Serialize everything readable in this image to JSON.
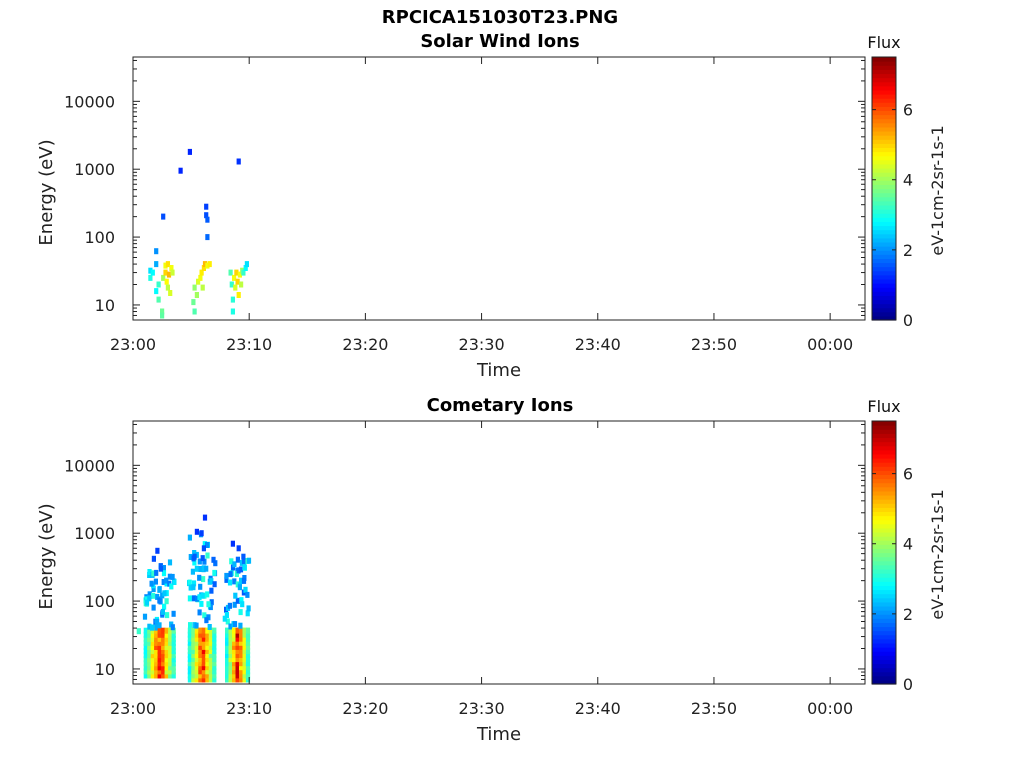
{
  "figure": {
    "title": "RPCICA151030T23.PNG"
  },
  "chart_data": [
    {
      "type": "heatmap",
      "title": "Solar Wind Ions",
      "xlabel": "Time",
      "ylabel": "Energy (eV)",
      "y_scale": "log",
      "y_range_ev": [
        6,
        45000
      ],
      "x_range_min": [
        0,
        63
      ],
      "x_ticks": [
        "23:00",
        "23:10",
        "23:20",
        "23:30",
        "23:40",
        "23:50",
        "00:00"
      ],
      "y_ticks": [
        "10",
        "100",
        "1000",
        "10000"
      ],
      "colorbar": {
        "label": "Flux",
        "unit": "eV-1cm-2sr-1s-1",
        "range": [
          0,
          7.5
        ],
        "ticks": [
          "0",
          "2",
          "4",
          "6"
        ],
        "colormap": "jet"
      },
      "cells": [
        [
          1.5,
          25,
          3.0
        ],
        [
          1.5,
          32,
          2.6
        ],
        [
          1.7,
          30,
          2.8
        ],
        [
          2.0,
          40,
          2.2
        ],
        [
          2.0,
          62,
          2.0
        ],
        [
          2.0,
          16,
          2.8
        ],
        [
          2.2,
          12,
          3.4
        ],
        [
          2.2,
          20,
          3.2
        ],
        [
          2.5,
          8,
          3.6
        ],
        [
          2.5,
          7,
          3.5
        ],
        [
          2.6,
          25,
          4.0
        ],
        [
          2.8,
          38,
          4.6
        ],
        [
          2.8,
          30,
          5.0
        ],
        [
          2.9,
          22,
          4.7
        ],
        [
          3.0,
          18,
          4.2
        ],
        [
          3.0,
          40,
          4.9
        ],
        [
          3.1,
          28,
          5.2
        ],
        [
          3.2,
          15,
          4.4
        ],
        [
          3.3,
          35,
          4.6
        ],
        [
          3.4,
          30,
          4.3
        ],
        [
          2.6,
          200,
          1.5
        ],
        [
          4.1,
          950,
          1.2
        ],
        [
          4.9,
          1800,
          1.2
        ],
        [
          5.2,
          11,
          3.6
        ],
        [
          5.3,
          8,
          3.4
        ],
        [
          5.3,
          18,
          3.9
        ],
        [
          5.5,
          14,
          4.0
        ],
        [
          5.6,
          22,
          4.4
        ],
        [
          5.8,
          25,
          4.6
        ],
        [
          5.9,
          30,
          4.8
        ],
        [
          6.0,
          18,
          4.2
        ],
        [
          6.1,
          35,
          4.9
        ],
        [
          6.2,
          40,
          5.2
        ],
        [
          6.4,
          38,
          4.6
        ],
        [
          6.6,
          40,
          4.8
        ],
        [
          6.3,
          210,
          1.5
        ],
        [
          6.4,
          180,
          1.6
        ],
        [
          6.3,
          280,
          1.4
        ],
        [
          6.4,
          100,
          1.7
        ],
        [
          8.4,
          30,
          3.4
        ],
        [
          8.5,
          20,
          3.2
        ],
        [
          8.6,
          12,
          3.1
        ],
        [
          8.6,
          8,
          3.0
        ],
        [
          8.7,
          25,
          4.6
        ],
        [
          8.8,
          18,
          4.4
        ],
        [
          8.9,
          30,
          5.0
        ],
        [
          9.0,
          22,
          5.0
        ],
        [
          9.1,
          14,
          4.8
        ],
        [
          9.2,
          28,
          4.6
        ],
        [
          9.3,
          20,
          4.2
        ],
        [
          9.4,
          32,
          4.0
        ],
        [
          9.5,
          30,
          3.2
        ],
        [
          9.7,
          35,
          2.8
        ],
        [
          9.8,
          40,
          2.6
        ],
        [
          9.1,
          1300,
          1.3
        ]
      ]
    },
    {
      "type": "heatmap",
      "title": "Cometary Ions",
      "xlabel": "Time",
      "ylabel": "Energy (eV)",
      "y_scale": "log",
      "y_range_ev": [
        6,
        45000
      ],
      "x_range_min": [
        0,
        63
      ],
      "x_ticks": [
        "23:00",
        "23:10",
        "23:20",
        "23:30",
        "23:40",
        "23:50",
        "00:00"
      ],
      "y_ticks": [
        "10",
        "100",
        "1000",
        "10000"
      ],
      "colorbar": {
        "label": "Flux",
        "unit": "eV-1cm-2sr-1s-1",
        "range": [
          0,
          7.5
        ],
        "ticks": [
          "0",
          "2",
          "4",
          "6"
        ],
        "colormap": "jet"
      },
      "bursts": [
        {
          "t_start": 1.1,
          "t_end": 3.6,
          "core_ev": [
            8,
            40
          ],
          "peak": 7.0,
          "top_ev": 560
        },
        {
          "t_start": 4.9,
          "t_end": 7.1,
          "core_ev": [
            7,
            40
          ],
          "peak": 6.8,
          "top_ev": 1700
        },
        {
          "t_start": 8.1,
          "t_end": 10.0,
          "core_ev": [
            7,
            38
          ],
          "peak": 7.2,
          "top_ev": 700
        }
      ],
      "cells": [
        [
          2.1,
          550,
          1.4
        ],
        [
          1.8,
          420,
          1.5
        ],
        [
          2.4,
          300,
          1.6
        ],
        [
          2.0,
          260,
          1.8
        ],
        [
          1.6,
          180,
          2.0
        ],
        [
          2.3,
          150,
          2.2
        ],
        [
          1.4,
          110,
          2.4
        ],
        [
          1.2,
          95,
          2.5
        ],
        [
          2.7,
          130,
          2.4
        ],
        [
          5.5,
          1050,
          1.3
        ],
        [
          5.9,
          1000,
          1.4
        ],
        [
          6.2,
          1700,
          1.3
        ],
        [
          5.3,
          450,
          1.6
        ],
        [
          6.0,
          430,
          1.6
        ],
        [
          6.1,
          600,
          1.5
        ],
        [
          5.7,
          220,
          2.0
        ],
        [
          6.3,
          300,
          2.2
        ],
        [
          5.2,
          160,
          2.4
        ],
        [
          6.0,
          120,
          2.6
        ],
        [
          6.5,
          90,
          3.0
        ],
        [
          8.6,
          700,
          1.3
        ],
        [
          9.1,
          600,
          1.4
        ],
        [
          9.5,
          450,
          1.6
        ],
        [
          8.4,
          250,
          1.8
        ],
        [
          9.2,
          160,
          2.2
        ],
        [
          8.8,
          120,
          2.4
        ],
        [
          9.4,
          90,
          2.6
        ],
        [
          7.9,
          55,
          2.6
        ],
        [
          0.5,
          36,
          3.2
        ]
      ]
    }
  ]
}
